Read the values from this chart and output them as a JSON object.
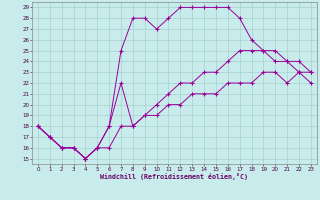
{
  "xlabel": "Windchill (Refroidissement éolien,°C)",
  "bg_color": "#c8ecec",
  "line_color": "#990099",
  "xlim": [
    -0.5,
    23.5
  ],
  "ylim": [
    14.5,
    29.5
  ],
  "xticks": [
    0,
    1,
    2,
    3,
    4,
    5,
    6,
    7,
    8,
    9,
    10,
    11,
    12,
    13,
    14,
    15,
    16,
    17,
    18,
    19,
    20,
    21,
    22,
    23
  ],
  "yticks": [
    15,
    16,
    17,
    18,
    19,
    20,
    21,
    22,
    23,
    24,
    25,
    26,
    27,
    28,
    29
  ],
  "line1_x": [
    0,
    1,
    2,
    3,
    4,
    5,
    6,
    7,
    8,
    9,
    10,
    11,
    12,
    13,
    14,
    15,
    16,
    17,
    18,
    19,
    20,
    21,
    22,
    23
  ],
  "line1_y": [
    18,
    17,
    16,
    16,
    15,
    16,
    18,
    25,
    28,
    28,
    27,
    28,
    29,
    29,
    29,
    29,
    29,
    28,
    26,
    25,
    24,
    24,
    23,
    22
  ],
  "line2_x": [
    0,
    1,
    2,
    3,
    4,
    5,
    6,
    7,
    8,
    9,
    10,
    11,
    12,
    13,
    14,
    15,
    16,
    17,
    18,
    19,
    20,
    21,
    22,
    23
  ],
  "line2_y": [
    18,
    17,
    16,
    16,
    15,
    16,
    18,
    22,
    18,
    19,
    20,
    21,
    22,
    22,
    23,
    23,
    24,
    25,
    25,
    25,
    25,
    24,
    24,
    23
  ],
  "line3_x": [
    0,
    1,
    2,
    3,
    4,
    5,
    6,
    7,
    8,
    9,
    10,
    11,
    12,
    13,
    14,
    15,
    16,
    17,
    18,
    19,
    20,
    21,
    22,
    23
  ],
  "line3_y": [
    18,
    17,
    16,
    16,
    15,
    16,
    16,
    18,
    18,
    19,
    19,
    20,
    20,
    21,
    21,
    21,
    22,
    22,
    22,
    23,
    23,
    22,
    23,
    23
  ]
}
